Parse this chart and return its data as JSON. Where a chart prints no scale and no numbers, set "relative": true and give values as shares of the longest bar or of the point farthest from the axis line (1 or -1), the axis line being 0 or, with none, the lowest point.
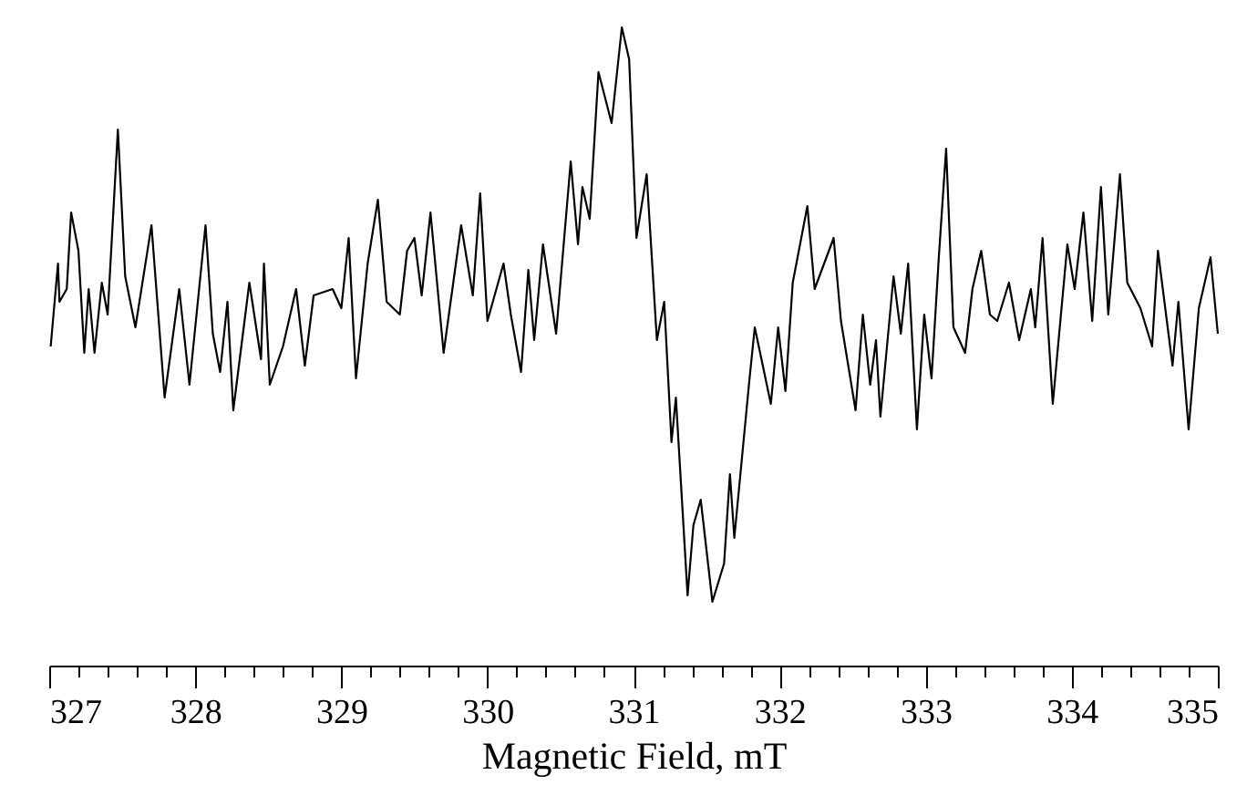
{
  "chart_data": {
    "type": "line",
    "xlabel": "Magnetic Field, mT",
    "relative": true,
    "marker": "none",
    "line_style": "solid",
    "xlim": [
      327,
      335
    ],
    "xticks": [
      327,
      {
        "value": 327.2,
        "label": null
      },
      {
        "value": 327.4,
        "label": null
      },
      {
        "value": 327.6,
        "label": null
      },
      {
        "value": 327.8,
        "label": null
      },
      328,
      {
        "value": 328.2,
        "label": null
      },
      {
        "value": 328.4,
        "label": null
      },
      {
        "value": 328.6,
        "label": null
      },
      {
        "value": 328.8,
        "label": null
      },
      329,
      {
        "value": 329.2,
        "label": null
      },
      {
        "value": 329.4,
        "label": null
      },
      {
        "value": 329.6,
        "label": null
      },
      {
        "value": 329.8,
        "label": null
      },
      330,
      {
        "value": 330.2,
        "label": null
      },
      {
        "value": 330.4,
        "label": null
      },
      {
        "value": 330.6,
        "label": null
      },
      {
        "value": 330.8,
        "label": null
      },
      331,
      {
        "value": 331.2,
        "label": null
      },
      {
        "value": 331.4,
        "label": null
      },
      {
        "value": 331.6,
        "label": null
      },
      {
        "value": 331.8,
        "label": null
      },
      332,
      {
        "value": 332.2,
        "label": null
      },
      {
        "value": 332.4,
        "label": null
      },
      {
        "value": 332.6,
        "label": null
      },
      {
        "value": 332.8,
        "label": null
      },
      333,
      {
        "value": 333.2,
        "label": null
      },
      {
        "value": 333.4,
        "label": null
      },
      {
        "value": 333.6,
        "label": null
      },
      {
        "value": 333.8,
        "label": null
      },
      334,
      {
        "value": 334.2,
        "label": null
      },
      {
        "value": 334.4,
        "label": null
      },
      {
        "value": 334.6,
        "label": null
      },
      {
        "value": 334.8,
        "label": null
      },
      335
    ],
    "x": [
      327.01,
      327.06,
      327.07,
      327.12,
      327.15,
      327.2,
      327.24,
      327.27,
      327.31,
      327.36,
      327.4,
      327.47,
      327.52,
      327.59,
      327.7,
      327.79,
      327.89,
      327.96,
      328.07,
      328.12,
      328.17,
      328.22,
      328.26,
      328.37,
      328.45,
      328.47,
      328.51,
      328.6,
      328.69,
      328.75,
      328.81,
      328.94,
      329.0,
      329.05,
      329.1,
      329.18,
      329.25,
      329.31,
      329.4,
      329.45,
      329.5,
      329.55,
      329.61,
      329.7,
      329.76,
      329.82,
      329.9,
      329.95,
      330.0,
      330.11,
      330.16,
      330.23,
      330.28,
      330.32,
      330.38,
      330.47,
      330.57,
      330.62,
      330.65,
      330.7,
      330.76,
      330.85,
      330.92,
      330.97,
      331.02,
      331.09,
      331.16,
      331.21,
      331.26,
      331.29,
      331.37,
      331.41,
      331.46,
      331.54,
      331.62,
      331.66,
      331.69,
      331.79,
      331.83,
      331.94,
      331.99,
      332.04,
      332.09,
      332.19,
      332.24,
      332.37,
      332.42,
      332.52,
      332.57,
      332.62,
      332.66,
      332.69,
      332.78,
      332.83,
      332.88,
      332.94,
      332.99,
      333.04,
      333.09,
      333.14,
      333.19,
      333.27,
      333.32,
      333.38,
      333.44,
      333.49,
      333.57,
      333.64,
      333.72,
      333.75,
      333.8,
      333.87,
      333.97,
      334.02,
      334.08,
      334.14,
      334.2,
      334.25,
      334.33,
      334.38,
      334.47,
      334.55,
      334.59,
      334.69,
      334.73,
      334.8,
      334.87,
      334.95,
      335.0
    ],
    "series": [
      {
        "color": "#000000",
        "values": [
          0.5,
          0.63,
          0.57,
          0.59,
          0.71,
          0.65,
          0.49,
          0.59,
          0.49,
          0.6,
          0.55,
          0.84,
          0.61,
          0.53,
          0.69,
          0.42,
          0.59,
          0.44,
          0.69,
          0.52,
          0.46,
          0.57,
          0.4,
          0.6,
          0.48,
          0.63,
          0.44,
          0.5,
          0.59,
          0.47,
          0.58,
          0.59,
          0.56,
          0.67,
          0.45,
          0.63,
          0.73,
          0.57,
          0.55,
          0.65,
          0.67,
          0.58,
          0.71,
          0.49,
          0.59,
          0.69,
          0.58,
          0.74,
          0.54,
          0.63,
          0.55,
          0.46,
          0.62,
          0.51,
          0.66,
          0.52,
          0.79,
          0.66,
          0.75,
          0.7,
          0.93,
          0.85,
          1.0,
          0.95,
          0.67,
          0.77,
          0.51,
          0.57,
          0.35,
          0.42,
          0.11,
          0.22,
          0.26,
          0.1,
          0.16,
          0.3,
          0.2,
          0.44,
          0.53,
          0.41,
          0.53,
          0.43,
          0.6,
          0.72,
          0.59,
          0.67,
          0.54,
          0.4,
          0.55,
          0.44,
          0.51,
          0.39,
          0.61,
          0.52,
          0.63,
          0.37,
          0.55,
          0.45,
          0.64,
          0.81,
          0.53,
          0.49,
          0.59,
          0.65,
          0.55,
          0.54,
          0.6,
          0.51,
          0.59,
          0.53,
          0.67,
          0.41,
          0.66,
          0.59,
          0.71,
          0.54,
          0.75,
          0.55,
          0.77,
          0.6,
          0.56,
          0.5,
          0.65,
          0.47,
          0.57,
          0.37,
          0.56,
          0.64,
          0.52
        ]
      }
    ]
  }
}
